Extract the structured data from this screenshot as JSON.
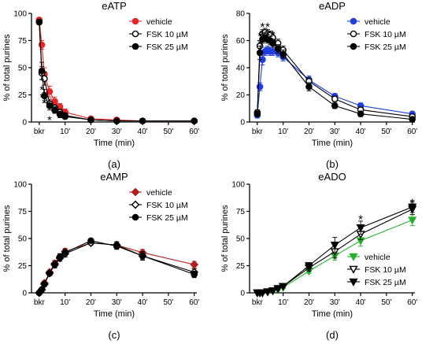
{
  "figure_tag": "",
  "chart_data": [
    {
      "id": "a",
      "type": "line",
      "title": "eATP",
      "panel_label": "(a)",
      "xlabel": "Time (min)",
      "ylabel": "% of total purines",
      "xlim": [
        -3,
        61
      ],
      "ylim": [
        0,
        100
      ],
      "xticks": [
        {
          "v": 0,
          "t": "bkr"
        },
        {
          "v": 10,
          "t": "10'"
        },
        {
          "v": 20,
          "t": "20'"
        },
        {
          "v": 30,
          "t": "30'"
        },
        {
          "v": 40,
          "t": "40'"
        },
        {
          "v": 50,
          "t": "50'"
        },
        {
          "v": 60,
          "t": "60'"
        }
      ],
      "yticks": [
        0,
        25,
        50,
        75,
        100
      ],
      "legend_position": "top-right",
      "series": [
        {
          "name": "vehicle",
          "color": "#e8262a",
          "marker": "circle",
          "fill": true,
          "x": [
            0,
            1,
            2,
            4,
            6,
            8,
            10,
            20,
            30,
            40,
            60
          ],
          "y": [
            94,
            71,
            44,
            28,
            19,
            14,
            9,
            3,
            2,
            1,
            1
          ],
          "err": [
            2,
            4,
            6,
            5,
            4,
            3,
            3,
            1,
            1,
            1,
            1
          ]
        },
        {
          "name": "FSK 10 µM",
          "color": "#000000",
          "marker": "circle",
          "fill": false,
          "x": [
            0,
            1,
            2,
            4,
            6,
            8,
            10,
            20,
            30,
            40,
            60
          ],
          "y": [
            92,
            45,
            40,
            17,
            13,
            9,
            6,
            2,
            1,
            1,
            1
          ],
          "err": [
            2,
            6,
            6,
            4,
            3,
            3,
            2,
            1,
            1,
            1,
            1
          ]
        },
        {
          "name": "FSK 25 µM",
          "color": "#000000",
          "marker": "circle",
          "fill": true,
          "x": [
            0,
            1,
            2,
            4,
            6,
            8,
            10,
            20,
            30,
            40,
            60
          ],
          "y": [
            92,
            47,
            24,
            15,
            11,
            7,
            5,
            2,
            1,
            1,
            1
          ],
          "err": [
            2,
            8,
            6,
            4,
            3,
            3,
            2,
            1,
            1,
            1,
            1
          ]
        }
      ],
      "annotations": [
        {
          "text": "*",
          "x": 1,
          "y": 32
        },
        {
          "text": "*",
          "x": 1,
          "y": 25
        },
        {
          "text": "*",
          "x": 2,
          "y": 27
        },
        {
          "text": "*",
          "x": 2,
          "y": 20
        },
        {
          "text": "*",
          "x": 4,
          "y": 4
        }
      ]
    },
    {
      "id": "b",
      "type": "line",
      "title": "eADP",
      "panel_label": "(b)",
      "xlabel": "Time (min)",
      "ylabel": "% of total purines",
      "xlim": [
        -3,
        61
      ],
      "ylim": [
        0,
        80
      ],
      "xticks": [
        {
          "v": 0,
          "t": "bkr"
        },
        {
          "v": 10,
          "t": "10'"
        },
        {
          "v": 20,
          "t": "20'"
        },
        {
          "v": 30,
          "t": "30'"
        },
        {
          "v": 40,
          "t": "40'"
        },
        {
          "v": 50,
          "t": "50'"
        },
        {
          "v": 60,
          "t": "60'"
        }
      ],
      "yticks": [
        0,
        20,
        40,
        60,
        80
      ],
      "legend_position": "top-right",
      "series": [
        {
          "name": "vehicle",
          "color": "#1f3ee0",
          "marker": "circle",
          "fill": true,
          "x": [
            0,
            1,
            2,
            3,
            4,
            5,
            6,
            8,
            10,
            20,
            30,
            40,
            60
          ],
          "y": [
            5,
            26,
            46,
            52,
            53,
            52,
            52,
            51,
            48,
            31,
            19,
            12,
            6
          ],
          "err": [
            2,
            3,
            4,
            3,
            3,
            3,
            3,
            3,
            3,
            3,
            2,
            2,
            1
          ]
        },
        {
          "name": "FSK 10 µM",
          "color": "#000000",
          "marker": "circle",
          "fill": false,
          "x": [
            0,
            1,
            2,
            3,
            4,
            5,
            6,
            8,
            10,
            20,
            30,
            40,
            60
          ],
          "y": [
            7,
            56,
            65,
            66,
            65,
            64,
            62,
            58,
            53,
            30,
            17,
            9,
            4
          ],
          "err": [
            2,
            4,
            3,
            3,
            3,
            3,
            3,
            3,
            3,
            3,
            2,
            2,
            1
          ]
        },
        {
          "name": "FSK 25 µM",
          "color": "#000000",
          "marker": "circle",
          "fill": true,
          "x": [
            0,
            1,
            2,
            3,
            4,
            5,
            6,
            8,
            10,
            20,
            30,
            40,
            60
          ],
          "y": [
            6,
            51,
            61,
            62,
            61,
            60,
            58,
            54,
            50,
            26,
            12,
            6,
            2
          ],
          "err": [
            2,
            5,
            3,
            3,
            3,
            3,
            3,
            3,
            3,
            3,
            2,
            2,
            1
          ]
        }
      ],
      "annotations": [
        {
          "text": "*",
          "x": 1,
          "y": 65
        },
        {
          "text": "*",
          "x": 1,
          "y": 59
        },
        {
          "text": "*",
          "x": 2,
          "y": 72
        },
        {
          "text": "*",
          "x": 2,
          "y": 66
        },
        {
          "text": "*",
          "x": 4,
          "y": 72
        },
        {
          "text": "*",
          "x": 4,
          "y": 66
        },
        {
          "text": "*",
          "x": 6,
          "y": 66
        }
      ]
    },
    {
      "id": "c",
      "type": "line",
      "title": "eAMP",
      "panel_label": "(c)",
      "xlabel": "Time (min)",
      "ylabel": "% of total purines",
      "xlim": [
        -3,
        61
      ],
      "ylim": [
        0,
        100
      ],
      "xticks": [
        {
          "v": 0,
          "t": "bkr"
        },
        {
          "v": 10,
          "t": "10'"
        },
        {
          "v": 20,
          "t": "20'"
        },
        {
          "v": 30,
          "t": "30'"
        },
        {
          "v": 40,
          "t": "40'"
        },
        {
          "v": 50,
          "t": "50'"
        },
        {
          "v": 60,
          "t": "60'"
        }
      ],
      "yticks": [
        0,
        25,
        50,
        75,
        100
      ],
      "legend_position": "top-right",
      "series": [
        {
          "name": "vehicle",
          "color": "#b01e1e",
          "marker": "diamond",
          "fill": true,
          "x": [
            0,
            1,
            2,
            4,
            6,
            8,
            10,
            20,
            30,
            40,
            60
          ],
          "y": [
            0,
            3,
            9,
            19,
            27,
            33,
            38,
            46,
            44,
            37,
            26
          ],
          "err": [
            0.5,
            1,
            2,
            2,
            3,
            3,
            3,
            2,
            3,
            3,
            3
          ]
        },
        {
          "name": "FSK 10 µM",
          "color": "#000000",
          "marker": "diamond",
          "fill": false,
          "x": [
            0,
            1,
            2,
            4,
            6,
            8,
            10,
            20,
            30,
            40,
            60
          ],
          "y": [
            0,
            3,
            8,
            18,
            26,
            32,
            36,
            46,
            44,
            34,
            19
          ],
          "err": [
            0.5,
            1,
            2,
            2,
            3,
            3,
            3,
            2,
            3,
            4,
            3
          ]
        },
        {
          "name": "FSK 25 µM",
          "color": "#000000",
          "marker": "circle",
          "fill": true,
          "x": [
            0,
            1,
            2,
            4,
            6,
            8,
            10,
            20,
            30,
            40,
            60
          ],
          "y": [
            0,
            3,
            8,
            18,
            26,
            33,
            37,
            48,
            43,
            34,
            17
          ],
          "err": [
            0.5,
            1,
            2,
            2,
            3,
            3,
            3,
            2,
            3,
            3,
            3
          ]
        }
      ],
      "annotations": []
    },
    {
      "id": "d",
      "type": "line",
      "title": "eADO",
      "panel_label": "(d)",
      "xlabel": "Time (min)",
      "ylabel": "% of total purines",
      "xlim": [
        -3,
        61
      ],
      "ylim": [
        0,
        100
      ],
      "xticks": [
        {
          "v": 0,
          "t": "bkr"
        },
        {
          "v": 10,
          "t": "10'"
        },
        {
          "v": 20,
          "t": "20'"
        },
        {
          "v": 30,
          "t": "30'"
        },
        {
          "v": 40,
          "t": "40'"
        },
        {
          "v": 50,
          "t": "50'"
        },
        {
          "v": 60,
          "t": "60'"
        }
      ],
      "yticks": [
        0,
        25,
        50,
        75,
        100
      ],
      "legend_position": "bottom-right",
      "series": [
        {
          "name": "vehicle",
          "color": "#22b22a",
          "marker": "tri-down",
          "fill": true,
          "x": [
            0,
            1,
            2,
            4,
            6,
            8,
            10,
            20,
            30,
            40,
            60
          ],
          "y": [
            0,
            0,
            0,
            1,
            2,
            3,
            5,
            20,
            34,
            48,
            67
          ],
          "err": [
            0.5,
            0.5,
            0.5,
            1,
            1,
            1,
            1,
            2,
            4,
            5,
            5
          ]
        },
        {
          "name": "FSK 10 µM",
          "color": "#000000",
          "marker": "tri-down",
          "fill": false,
          "x": [
            0,
            1,
            2,
            4,
            6,
            8,
            10,
            20,
            30,
            40,
            60
          ],
          "y": [
            0,
            0,
            0,
            1,
            2,
            4,
            6,
            23,
            38,
            54,
            77
          ],
          "err": [
            0.5,
            0.5,
            0.5,
            1,
            1,
            1,
            1,
            3,
            6,
            5,
            5
          ]
        },
        {
          "name": "FSK 25 µM",
          "color": "#000000",
          "marker": "tri-down",
          "fill": true,
          "x": [
            0,
            1,
            2,
            4,
            6,
            8,
            10,
            20,
            30,
            40,
            60
          ],
          "y": [
            0,
            0,
            0,
            1,
            2,
            4,
            6,
            25,
            44,
            60,
            79
          ],
          "err": [
            0.5,
            0.5,
            0.5,
            1,
            1,
            1,
            1,
            3,
            7,
            6,
            5
          ]
        }
      ],
      "annotations": [
        {
          "text": "*",
          "x": 40,
          "y": 70
        },
        {
          "text": "*",
          "x": 60,
          "y": 85
        },
        {
          "text": "*",
          "x": 60,
          "y": 78
        }
      ]
    }
  ]
}
